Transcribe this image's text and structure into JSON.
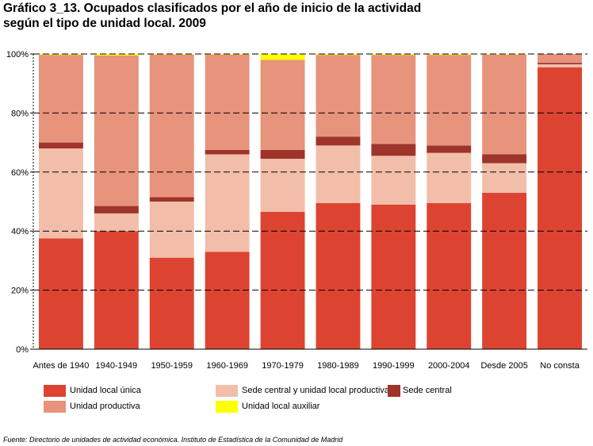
{
  "title_line1": "Gráfico 3_13. Ocupados clasificados por el año de inicio de la actividad",
  "title_line2": "según el tipo de unidad local. 2009",
  "source": "Fuente: Directorio de unidades de actividad económica. Instituto de Estadística de la Comunidad de Madrid",
  "colors": {
    "unica": "#dc4431",
    "sede_unidad": "#f3bea9",
    "sede_central": "#9e342a",
    "productiva": "#e8937c",
    "auxiliar": "#ffff00"
  },
  "chart_data": {
    "type": "bar",
    "stacked": true,
    "categories": [
      "Antes de 1940",
      "1940-1949",
      "1950-1959",
      "1960-1969",
      "1970-1979",
      "1980-1989",
      "1990-1999",
      "2000-2004",
      "Desde 2005",
      "No consta"
    ],
    "series": [
      {
        "name": "Unidad local única",
        "color_key": "unica",
        "values": [
          37.5,
          40,
          31,
          33,
          46.5,
          49.5,
          49,
          49.5,
          53,
          95.5
        ]
      },
      {
        "name": "Sede central y unidad local productiva",
        "color_key": "sede_unidad",
        "values": [
          30.5,
          6,
          19,
          33,
          18,
          19.5,
          16.5,
          17,
          10,
          1
        ]
      },
      {
        "name": "Sede central",
        "color_key": "sede_central",
        "values": [
          2,
          2.5,
          1.5,
          1.5,
          3,
          3,
          4,
          2.5,
          3,
          0.5
        ]
      },
      {
        "name": "Unidad productiva",
        "color_key": "productiva",
        "values": [
          29.7,
          51,
          48.3,
          32.3,
          30.5,
          27.7,
          30.2,
          30.7,
          33.8,
          3
        ]
      },
      {
        "name": "Unidad local auxiliar",
        "color_key": "auxiliar",
        "values": [
          0.3,
          0.5,
          0.2,
          0.2,
          2,
          0.3,
          0.3,
          0.3,
          0.2,
          0
        ]
      }
    ],
    "y_ticks": [
      "0%",
      "20%",
      "40%",
      "60%",
      "80%",
      "100%"
    ],
    "ylim": [
      0,
      100
    ],
    "grid": "dashed horizontal",
    "legend_position": "bottom"
  },
  "legend": [
    {
      "label": "Unidad local única",
      "color_key": "unica"
    },
    {
      "label": "Sede central y unidad local productiva",
      "color_key": "sede_unidad"
    },
    {
      "label": "Sede central",
      "color_key": "sede_central"
    },
    {
      "label": "Unidad productiva",
      "color_key": "productiva"
    },
    {
      "label": "Unidad local auxiliar",
      "color_key": "auxiliar"
    }
  ]
}
